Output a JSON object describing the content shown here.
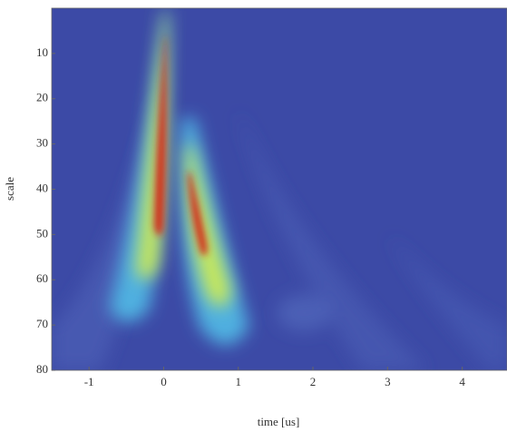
{
  "chart_data": {
    "type": "heatmap",
    "x_label": "time [us]",
    "y_label": "scale",
    "xlim": [
      -1.5,
      4.6
    ],
    "xticks": [
      -1,
      0,
      1,
      2,
      3,
      4
    ],
    "ylim": [
      80,
      0
    ],
    "yticks": [
      10,
      20,
      30,
      40,
      50,
      60,
      70,
      80
    ]
  }
}
